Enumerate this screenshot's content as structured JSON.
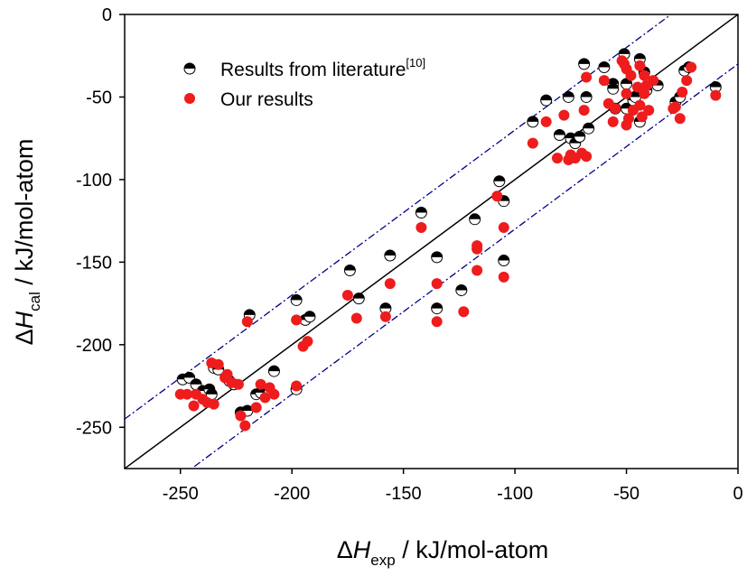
{
  "chart_data": {
    "type": "scatter",
    "xlabel": {
      "delta": "Δ",
      "symbol": "H",
      "subscript": "exp",
      "unit": " / kJ/mol-atom"
    },
    "ylabel": {
      "delta": "Δ",
      "symbol": "H",
      "subscript": "cal",
      "unit": " / kJ/mol-atom"
    },
    "xlim": [
      -275,
      0
    ],
    "ylim": [
      -275,
      0
    ],
    "xticks": [
      -250,
      -200,
      -150,
      -100,
      -50,
      0
    ],
    "yticks": [
      0,
      -50,
      -100,
      -150,
      -200,
      -250
    ],
    "legend": "upper left",
    "reference_lines": [
      {
        "slope": 1,
        "intercept": 0,
        "color": "#000000",
        "style": "solid"
      },
      {
        "slope": 1,
        "intercept": 30,
        "color": "#00008b",
        "style": "dashdot"
      },
      {
        "slope": 1,
        "intercept": -30,
        "color": "#00008b",
        "style": "dashdot"
      }
    ],
    "series": [
      {
        "name": "Results from literature",
        "name_superscript": "[10]",
        "color": "#000000",
        "marker": "half",
        "x": [
          -249,
          -246,
          -243,
          -240,
          -237,
          -236,
          -235,
          -233,
          -228,
          -226,
          -223,
          -220,
          -219,
          -216,
          -214,
          -210,
          -208,
          -198,
          -198,
          -194,
          -192,
          -174,
          -170,
          -158,
          -156,
          -142,
          -135,
          -135,
          -124,
          -118,
          -107,
          -105,
          -105,
          -92,
          -86,
          -80,
          -76,
          -75,
          -73,
          -71,
          -69,
          -68,
          -67,
          -60,
          -56,
          -56,
          -55,
          -51,
          -50,
          -50,
          -47,
          -46,
          -44,
          -44,
          -42,
          -41,
          -36,
          -28,
          -26,
          -24,
          -22,
          -10
        ],
        "y": [
          -221,
          -220,
          -224,
          -228,
          -227,
          -230,
          -214,
          -215,
          -222,
          -224,
          -241,
          -240,
          -182,
          -230,
          -229,
          -228,
          -216,
          -173,
          -227,
          -185,
          -183,
          -155,
          -172,
          -178,
          -146,
          -120,
          -147,
          -178,
          -167,
          -124,
          -101,
          -113,
          -149,
          -65,
          -52,
          -73,
          -50,
          -75,
          -78,
          -74,
          -30,
          -50,
          -69,
          -32,
          -42,
          -45,
          -57,
          -24,
          -42,
          -57,
          -52,
          -50,
          -27,
          -65,
          -35,
          -46,
          -43,
          -53,
          -50,
          -34,
          -32,
          -44
        ]
      },
      {
        "name": "Our results",
        "color": "#ee1c1c",
        "marker": "filled",
        "x": [
          -250,
          -247,
          -244,
          -243,
          -240,
          -238,
          -236,
          -235,
          -233,
          -230,
          -229,
          -227,
          -224,
          -223,
          -221,
          -220,
          -216,
          -214,
          -212,
          -210,
          -208,
          -198,
          -198,
          -195,
          -193,
          -175,
          -171,
          -158,
          -156,
          -142,
          -135,
          -135,
          -123,
          -117,
          -117,
          -117,
          -108,
          -105,
          -105,
          -92,
          -86,
          -81,
          -78,
          -76,
          -75,
          -73,
          -70,
          -69,
          -68,
          -68,
          -60,
          -58,
          -56,
          -55,
          -52,
          -51,
          -50,
          -50,
          -50,
          -49,
          -48,
          -47,
          -45,
          -44,
          -44,
          -43,
          -42,
          -42,
          -41,
          -40,
          -38,
          -29,
          -28,
          -26,
          -25,
          -23,
          -21,
          -10
        ],
        "y": [
          -230,
          -230,
          -237,
          -230,
          -233,
          -235,
          -211,
          -236,
          -212,
          -220,
          -218,
          -223,
          -224,
          -243,
          -249,
          -186,
          -238,
          -224,
          -232,
          -226,
          -230,
          -185,
          -225,
          -201,
          -198,
          -170,
          -184,
          -183,
          -163,
          -129,
          -163,
          -186,
          -180,
          -140,
          -142,
          -155,
          -110,
          -129,
          -159,
          -78,
          -65,
          -87,
          -61,
          -88,
          -85,
          -87,
          -84,
          -58,
          -86,
          -38,
          -40,
          -54,
          -65,
          -57,
          -28,
          -30,
          -33,
          -48,
          -67,
          -63,
          -37,
          -58,
          -44,
          -31,
          -55,
          -62,
          -48,
          -37,
          -43,
          -58,
          -40,
          -57,
          -56,
          -63,
          -47,
          -40,
          -32,
          -49
        ]
      }
    ]
  }
}
